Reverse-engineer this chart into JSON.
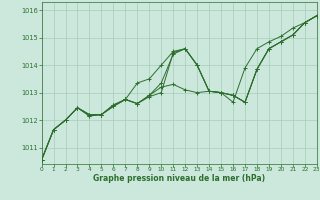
{
  "title": "Graphe pression niveau de la mer (hPa)",
  "bg_color": "#cce8dc",
  "grid_color": "#a8ccbc",
  "line_color": "#2d6e2d",
  "xlim": [
    0,
    23
  ],
  "ylim": [
    1010.4,
    1016.3
  ],
  "yticks": [
    1011,
    1012,
    1013,
    1014,
    1015,
    1016
  ],
  "xticks": [
    0,
    1,
    2,
    3,
    4,
    5,
    6,
    7,
    8,
    9,
    10,
    11,
    12,
    13,
    14,
    15,
    16,
    17,
    18,
    19,
    20,
    21,
    22,
    23
  ],
  "series": [
    [
      1010.55,
      1011.65,
      1012.0,
      1012.45,
      1012.15,
      1012.2,
      1012.5,
      1012.75,
      1012.6,
      1012.85,
      1013.0,
      1014.45,
      1014.6,
      1014.0,
      1013.05,
      1013.0,
      1012.9,
      1012.65,
      1013.85,
      1014.6,
      1014.85,
      1015.1,
      1015.55,
      1015.8
    ],
    [
      1010.55,
      1011.65,
      1012.0,
      1012.45,
      1012.15,
      1012.2,
      1012.5,
      1012.75,
      1012.6,
      1012.9,
      1013.35,
      1014.4,
      1014.6,
      1014.0,
      1013.05,
      1013.0,
      1012.9,
      1012.65,
      1013.85,
      1014.6,
      1014.85,
      1015.1,
      1015.55,
      1015.8
    ],
    [
      1010.55,
      1011.65,
      1012.0,
      1012.45,
      1012.2,
      1012.2,
      1012.55,
      1012.75,
      1013.35,
      1013.5,
      1014.0,
      1014.5,
      1014.6,
      1014.0,
      1013.05,
      1013.0,
      1012.9,
      1012.65,
      1013.85,
      1014.6,
      1014.85,
      1015.1,
      1015.55,
      1015.8
    ],
    [
      1010.55,
      1011.65,
      1012.0,
      1012.45,
      1012.2,
      1012.2,
      1012.55,
      1012.75,
      1012.6,
      1012.9,
      1013.2,
      1013.3,
      1013.1,
      1013.0,
      1013.05,
      1013.0,
      1012.65,
      1013.9,
      1014.6,
      1014.85,
      1015.05,
      1015.35,
      1015.55,
      1015.8
    ]
  ]
}
